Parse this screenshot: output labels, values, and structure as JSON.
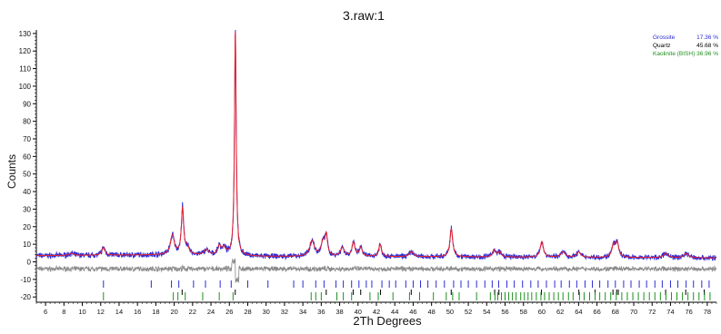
{
  "chart_data": {
    "type": "line",
    "title": "3.raw:1",
    "xlabel": "2Th Degrees",
    "ylabel": "Counts",
    "xlim": [
      5,
      79
    ],
    "ylim": [
      -23,
      132
    ],
    "x_ticks": [
      6,
      8,
      10,
      12,
      14,
      16,
      18,
      20,
      22,
      24,
      26,
      28,
      30,
      32,
      34,
      36,
      38,
      40,
      42,
      44,
      46,
      48,
      50,
      52,
      54,
      56,
      58,
      60,
      62,
      64,
      66,
      68,
      70,
      72,
      74,
      76,
      78
    ],
    "y_ticks": [
      -20,
      -10,
      0,
      10,
      20,
      30,
      40,
      50,
      60,
      70,
      80,
      90,
      100,
      110,
      120,
      130
    ],
    "grid": false,
    "legend_position": "top-right",
    "legend": [
      {
        "name": "Grossite",
        "value": "17.36 %",
        "color": "#2b2bd6"
      },
      {
        "name": "Quartz",
        "value": "45.68 %",
        "color": "#000000"
      },
      {
        "name": "Kaolinite (BISH)",
        "value": "36.96 %",
        "color": "#1f8f1f"
      }
    ],
    "series": [
      {
        "role": "observed",
        "color": "#2b2bd6"
      },
      {
        "role": "calculated",
        "color": "#e8202a"
      },
      {
        "role": "difference",
        "color": "#8a8a8a",
        "offset": -4
      },
      {
        "role": "hkl-markers",
        "phase": "Grossite",
        "color": "#2b2bd6"
      },
      {
        "role": "hkl-markers",
        "phase": "Quartz",
        "color": "#000000"
      },
      {
        "role": "hkl-markers",
        "phase": "Kaolinite (BISH)",
        "color": "#1f8f1f"
      }
    ],
    "background": [
      [
        5,
        3.5
      ],
      [
        20,
        4
      ],
      [
        30,
        3
      ],
      [
        50,
        2.8
      ],
      [
        79,
        2.2
      ]
    ],
    "peaks": [
      [
        8.8,
        1.2,
        0.3
      ],
      [
        12.3,
        4.5,
        0.2
      ],
      [
        19.8,
        11,
        0.25
      ],
      [
        20.9,
        26,
        0.15
      ],
      [
        21.4,
        4,
        0.25
      ],
      [
        23.5,
        3,
        0.3
      ],
      [
        24.9,
        5,
        0.2
      ],
      [
        25.4,
        4,
        0.25
      ],
      [
        26.65,
        128,
        0.11
      ],
      [
        35.0,
        9,
        0.3
      ],
      [
        36.2,
        8,
        0.25
      ],
      [
        36.55,
        11,
        0.15
      ],
      [
        38.3,
        5,
        0.25
      ],
      [
        39.5,
        8,
        0.18
      ],
      [
        40.3,
        5,
        0.2
      ],
      [
        42.4,
        7,
        0.18
      ],
      [
        45.8,
        3,
        0.25
      ],
      [
        50.15,
        16,
        0.18
      ],
      [
        54.8,
        4,
        0.2
      ],
      [
        55.4,
        3,
        0.2
      ],
      [
        60.0,
        9,
        0.2
      ],
      [
        62.3,
        3,
        0.3
      ],
      [
        64.0,
        3,
        0.25
      ],
      [
        67.8,
        7,
        0.2
      ],
      [
        68.2,
        8,
        0.2
      ],
      [
        73.5,
        2.5,
        0.3
      ],
      [
        75.7,
        2.5,
        0.3
      ]
    ],
    "hkl_markers": {
      "Grossite": [
        12.3,
        17.5,
        19.7,
        20.5,
        22.1,
        23.4,
        25.0,
        26.2,
        28.0,
        30.2,
        33.0,
        34.0,
        35.4,
        36.3,
        37.6,
        38.4,
        39.3,
        40.1,
        40.9,
        41.5,
        42.6,
        43.4,
        44.1,
        45.2,
        46.0,
        46.8,
        47.6,
        48.5,
        49.4,
        50.4,
        51.2,
        52.0,
        52.9,
        53.8,
        54.6,
        55.3,
        56.2,
        57.0,
        57.9,
        58.8,
        59.6,
        60.5,
        61.4,
        62.1,
        63.0,
        63.8,
        64.7,
        65.5,
        66.3,
        67.2,
        68.0,
        68.9,
        69.7,
        70.6,
        71.4,
        72.3,
        73.1,
        74.0,
        74.8,
        75.7,
        76.5,
        77.4,
        78.2
      ],
      "Quartz": [
        20.86,
        26.64,
        36.54,
        39.47,
        40.29,
        42.45,
        45.79,
        50.14,
        54.87,
        55.33,
        59.96,
        64.03,
        65.79,
        67.74,
        68.14,
        68.32,
        73.47,
        75.66,
        77.67
      ],
      "Kaolinite (BISH)": [
        12.3,
        19.9,
        20.4,
        21.2,
        23.1,
        24.9,
        26.4,
        34.9,
        35.4,
        36.0,
        37.7,
        38.4,
        39.3,
        41.3,
        42.2,
        43.8,
        45.6,
        46.7,
        48.2,
        49.6,
        50.3,
        51.0,
        52.9,
        54.4,
        54.9,
        55.2,
        55.6,
        56.0,
        56.4,
        56.8,
        57.2,
        57.7,
        58.1,
        58.5,
        58.9,
        59.4,
        59.9,
        60.3,
        60.8,
        61.3,
        61.8,
        62.3,
        62.9,
        63.4,
        64.1,
        64.6,
        65.2,
        65.8,
        66.3,
        66.9,
        67.5,
        68.1,
        68.7,
        69.3,
        69.9,
        70.5,
        71.1,
        71.7,
        72.3,
        72.9,
        73.5,
        74.1,
        74.7,
        75.3,
        75.9,
        76.5,
        77.1,
        77.7,
        78.3
      ]
    }
  }
}
